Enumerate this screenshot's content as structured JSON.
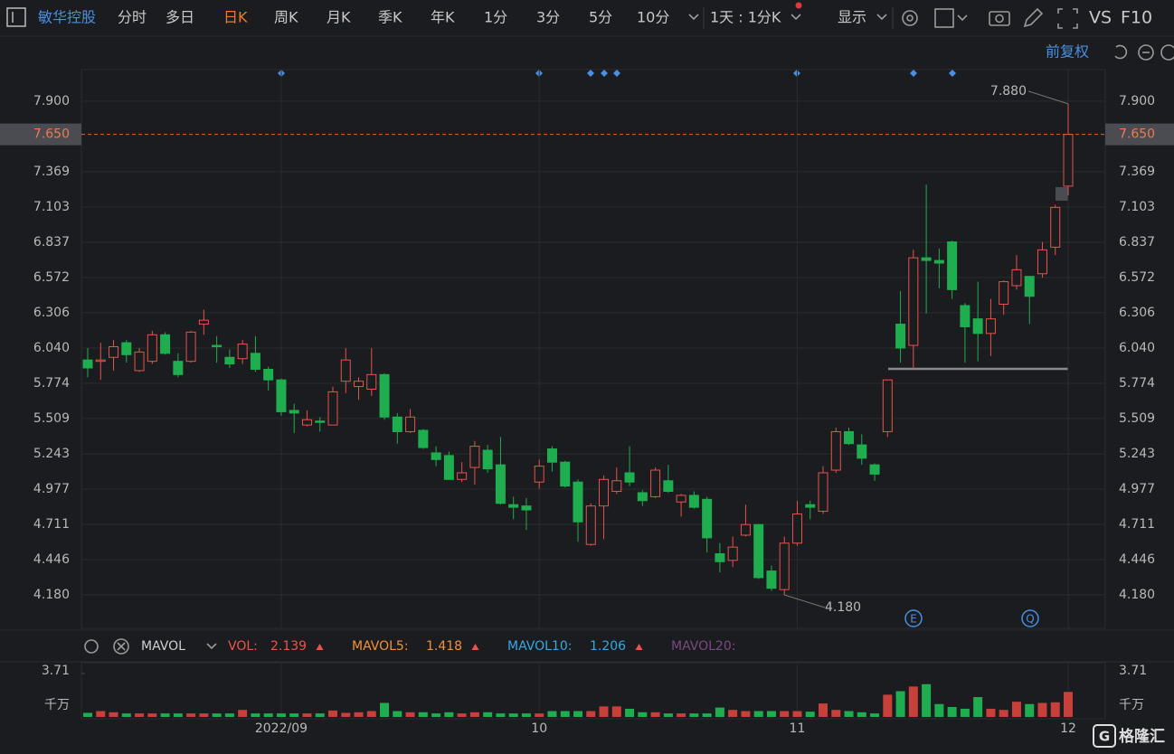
{
  "toolbar": {
    "stock_name": "敏华控股",
    "tabs": [
      "分时",
      "多日",
      "日K",
      "周K",
      "月K",
      "季K",
      "年K",
      "1分",
      "3分",
      "5分",
      "10分"
    ],
    "active": "日K",
    "period_select": "1天 : 1分K",
    "display": "显示",
    "vs": "VS",
    "f10": "F10",
    "adjust": "前复权"
  },
  "chart_data": {
    "type": "candlestick",
    "up_color": "#e8524a",
    "down_color": "#1fae4f",
    "categories": [
      null,
      null,
      null,
      null,
      null,
      null,
      null,
      null,
      null,
      null,
      null,
      null,
      null,
      null,
      null,
      "2022/09",
      null,
      null,
      null,
      null,
      null,
      null,
      null,
      null,
      null,
      null,
      null,
      null,
      null,
      null,
      null,
      null,
      null,
      null,
      null,
      "10",
      null,
      null,
      null,
      null,
      null,
      null,
      null,
      null,
      null,
      null,
      null,
      null,
      null,
      null,
      null,
      null,
      null,
      null,
      null,
      "11",
      null,
      null,
      null,
      null,
      null,
      null,
      null,
      null,
      null,
      null,
      null,
      null,
      null,
      null,
      null,
      null,
      null,
      null,
      null,
      null,
      "12"
    ],
    "open": [
      5.95,
      5.94,
      5.97,
      6.08,
      5.87,
      5.94,
      6.14,
      5.94,
      5.94,
      6.22,
      6.06,
      5.97,
      5.96,
      6.0,
      5.88,
      5.8,
      5.57,
      5.46,
      5.49,
      5.46,
      5.79,
      5.75,
      5.73,
      5.84,
      5.52,
      5.41,
      5.42,
      5.25,
      5.23,
      5.05,
      5.14,
      5.27,
      5.16,
      4.86,
      4.85,
      5.03,
      5.28,
      5.18,
      5.03,
      4.56,
      4.85,
      4.96,
      5.1,
      4.95,
      4.92,
      5.04,
      4.88,
      4.93,
      4.9,
      4.49,
      4.44,
      4.63,
      4.71,
      4.36,
      4.22,
      4.57,
      4.86,
      4.81,
      5.12,
      5.41,
      5.31,
      5.16,
      5.41,
      6.22,
      6.06,
      6.72,
      6.7,
      6.84,
      6.36,
      6.26,
      6.15,
      6.37,
      6.51,
      6.58,
      6.6,
      6.8,
      7.26
    ],
    "high": [
      6.04,
      6.08,
      6.1,
      6.1,
      6.04,
      6.17,
      6.16,
      6.0,
      6.17,
      6.33,
      6.13,
      6.03,
      6.1,
      6.13,
      5.9,
      5.81,
      5.62,
      5.57,
      5.52,
      5.75,
      6.04,
      5.82,
      6.04,
      5.85,
      5.55,
      5.58,
      5.43,
      5.3,
      5.26,
      5.18,
      5.34,
      5.31,
      5.37,
      4.92,
      4.91,
      5.2,
      5.3,
      5.19,
      5.05,
      4.87,
      5.08,
      5.14,
      5.3,
      4.97,
      5.14,
      5.16,
      4.94,
      4.96,
      4.92,
      4.57,
      4.62,
      4.86,
      4.71,
      4.4,
      4.62,
      4.89,
      4.89,
      5.15,
      5.44,
      5.44,
      5.39,
      5.17,
      5.8,
      6.47,
      6.78,
      7.27,
      6.79,
      6.85,
      6.38,
      6.54,
      6.41,
      6.55,
      6.74,
      6.58,
      6.84,
      7.12,
      7.88
    ],
    "low": [
      5.82,
      5.8,
      5.87,
      5.93,
      5.86,
      5.92,
      5.99,
      5.82,
      5.93,
      6.14,
      5.93,
      5.89,
      5.92,
      5.86,
      5.72,
      5.53,
      5.4,
      5.45,
      5.41,
      5.46,
      5.7,
      5.65,
      5.68,
      5.5,
      5.32,
      5.4,
      5.28,
      5.15,
      5.05,
      5.03,
      5.01,
      5.1,
      4.86,
      4.75,
      4.67,
      4.98,
      5.11,
      4.99,
      4.58,
      4.55,
      4.6,
      4.94,
      5.0,
      4.85,
      4.91,
      4.95,
      4.77,
      4.83,
      4.5,
      4.35,
      4.39,
      4.62,
      4.3,
      4.21,
      4.18,
      4.55,
      4.75,
      4.79,
      5.1,
      5.31,
      5.16,
      5.04,
      5.37,
      5.93,
      5.88,
      6.3,
      6.49,
      6.41,
      5.93,
      5.94,
      5.98,
      6.29,
      6.48,
      6.22,
      6.57,
      6.74,
      7.19
    ],
    "close": [
      5.89,
      5.95,
      6.05,
      5.99,
      6.01,
      6.14,
      6.0,
      5.84,
      6.16,
      6.25,
      6.05,
      5.92,
      6.07,
      5.88,
      5.8,
      5.56,
      5.55,
      5.5,
      5.48,
      5.71,
      5.95,
      5.79,
      5.84,
      5.52,
      5.41,
      5.52,
      5.29,
      5.2,
      5.05,
      5.1,
      5.3,
      5.13,
      4.87,
      4.84,
      4.82,
      5.15,
      5.18,
      5.0,
      4.73,
      4.85,
      5.05,
      5.04,
      5.03,
      4.89,
      5.12,
      4.96,
      4.93,
      4.84,
      4.61,
      4.43,
      4.54,
      4.71,
      4.31,
      4.23,
      4.57,
      4.79,
      4.84,
      5.1,
      5.41,
      5.32,
      5.21,
      5.09,
      5.8,
      6.04,
      6.72,
      6.7,
      6.68,
      6.48,
      6.2,
      6.15,
      6.26,
      6.54,
      6.63,
      6.43,
      6.78,
      7.1,
      7.65
    ],
    "ylim": [
      3.928,
      8.138
    ],
    "yticks": [
      {
        "value": 7.9,
        "label": "7.900"
      },
      7.369,
      7.103,
      6.837,
      6.572,
      6.306,
      {
        "value": 6.04,
        "label": "6.040"
      },
      5.774,
      5.509,
      5.243,
      4.977,
      4.711,
      4.446,
      {
        "value": 4.18,
        "label": "4.180"
      }
    ],
    "last_price": {
      "value": 7.65,
      "label": "7.650"
    },
    "annotations": [
      {
        "value": 7.88,
        "label": "7.880"
      },
      {
        "value": 4.18,
        "label": "4.180"
      }
    ],
    "badges": [
      "E",
      "Q"
    ],
    "grid": true
  },
  "volume_chart": {
    "type": "bar",
    "indicator": "MAVOL",
    "values": [
      0.35,
      0.5,
      0.4,
      0.3,
      0.3,
      0.3,
      0.3,
      0.3,
      0.3,
      0.3,
      0.3,
      0.3,
      0.6,
      0.3,
      0.3,
      0.3,
      0.3,
      0.3,
      0.3,
      0.55,
      0.35,
      0.4,
      0.5,
      1.2,
      0.5,
      0.4,
      0.4,
      0.3,
      0.4,
      0.3,
      0.4,
      0.4,
      0.3,
      0.3,
      0.3,
      0.3,
      0.5,
      0.5,
      0.5,
      0.5,
      0.9,
      0.9,
      0.7,
      0.4,
      0.4,
      0.3,
      0.3,
      0.3,
      0.3,
      0.8,
      0.6,
      0.5,
      0.5,
      0.5,
      0.5,
      0.5,
      0.45,
      1.15,
      0.6,
      0.5,
      0.4,
      0.3,
      1.9,
      2.2,
      2.6,
      2.8,
      1.1,
      0.85,
      0.7,
      1.7,
      0.7,
      0.6,
      1.3,
      1.1,
      1.2,
      1.25,
      2.139
    ],
    "ylim": [
      0,
      3.71
    ],
    "yticks": [
      3.71
    ],
    "y_unit": "千万",
    "legend": [
      {
        "name": "VOL:",
        "value": 2.139,
        "value_label": "2.139",
        "color": "#f0524a"
      },
      {
        "name": "MAVOL5:",
        "value": 1.418,
        "value_label": "1.418",
        "color": "#f0923a"
      },
      {
        "name": "MAVOL10:",
        "value": 1.206,
        "value_label": "1.206",
        "color": "#35a8e6"
      },
      {
        "name": "MAVOL20:",
        "color": "#7a4a80"
      }
    ]
  }
}
